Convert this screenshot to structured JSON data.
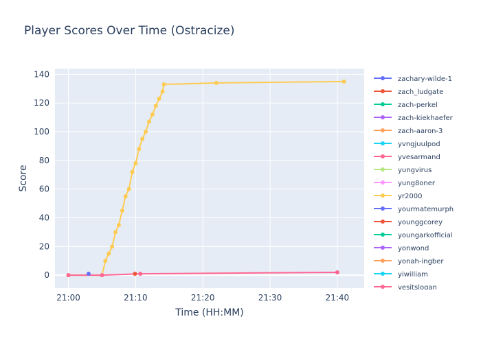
{
  "chart_data": {
    "type": "line",
    "title": "Player Scores Over Time (Ostracize)",
    "xlabel": "Time (HH:MM)",
    "ylabel": "Score",
    "x_range": [
      "20:58",
      "21:44"
    ],
    "ylim": [
      -9,
      144
    ],
    "x_ticks": [
      "21:00",
      "21:10",
      "21:20",
      "21:30",
      "21:40"
    ],
    "y_ticks": [
      0,
      20,
      40,
      60,
      80,
      100,
      120,
      140
    ],
    "grid": true,
    "legend_position": "right",
    "legend": [
      {
        "name": "zachary-wilde-1",
        "color": "#636efa"
      },
      {
        "name": "zach_ludgate",
        "color": "#EF553B"
      },
      {
        "name": "zach-perkel",
        "color": "#00cc96"
      },
      {
        "name": "zach-kiekhaefer",
        "color": "#ab63fa"
      },
      {
        "name": "zach-aaron-3",
        "color": "#FFA15A"
      },
      {
        "name": "yvngjuulpod",
        "color": "#19d3f3"
      },
      {
        "name": "yvesarmand",
        "color": "#FF6692"
      },
      {
        "name": "yungvirus",
        "color": "#B6E880"
      },
      {
        "name": "yung8oner",
        "color": "#FF97FF"
      },
      {
        "name": "yr2000",
        "color": "#FECB52"
      },
      {
        "name": "yourmatemurph",
        "color": "#636efa"
      },
      {
        "name": "younggcorey",
        "color": "#EF553B"
      },
      {
        "name": "youngarkofficial",
        "color": "#00cc96"
      },
      {
        "name": "yonwond",
        "color": "#ab63fa"
      },
      {
        "name": "yonah-ingber",
        "color": "#FFA15A"
      },
      {
        "name": "yiwilliam",
        "color": "#19d3f3"
      },
      {
        "name": "yesitslogan",
        "color": "#FF6692"
      }
    ],
    "series": [
      {
        "name": "yr2000",
        "color": "#FECB52",
        "points": [
          [
            "21:00",
            0
          ],
          [
            "21:05",
            0
          ],
          [
            "21:05.5",
            10
          ],
          [
            "21:06",
            15
          ],
          [
            "21:06.5",
            20
          ],
          [
            "21:07",
            30
          ],
          [
            "21:07.5",
            35
          ],
          [
            "21:08",
            45
          ],
          [
            "21:08.5",
            55
          ],
          [
            "21:09",
            60
          ],
          [
            "21:09.5",
            72
          ],
          [
            "21:10",
            78
          ],
          [
            "21:10.5",
            88
          ],
          [
            "21:11",
            95
          ],
          [
            "21:11.5",
            100
          ],
          [
            "21:12",
            107
          ],
          [
            "21:12.5",
            112
          ],
          [
            "21:13",
            118
          ],
          [
            "21:13.5",
            123
          ],
          [
            "21:14",
            128
          ],
          [
            "21:14.2",
            133
          ],
          [
            "21:22",
            134
          ],
          [
            "21:41",
            135
          ]
        ]
      },
      {
        "name": "yesitslogan",
        "color": "#FF6692",
        "points": [
          [
            "21:00",
            0
          ],
          [
            "21:05",
            0
          ],
          [
            "21:10.7",
            1
          ],
          [
            "21:40",
            2
          ]
        ]
      },
      {
        "name": "zachary-wilde-1",
        "color": "#636efa",
        "points": [
          [
            "21:03",
            1
          ]
        ]
      },
      {
        "name": "zach_ludgate",
        "color": "#EF553B",
        "points": [
          [
            "21:09.9",
            1
          ]
        ]
      }
    ]
  }
}
